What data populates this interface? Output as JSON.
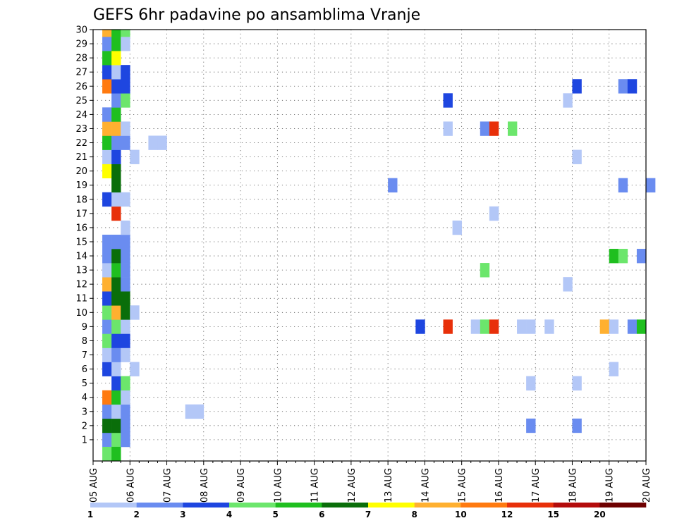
{
  "chart_data": {
    "type": "heatmap",
    "title": "GEFS 6hr padavine po ansamblima Vranje",
    "xlabel": "",
    "ylabel": "",
    "grid": true,
    "x_ticks": [
      "05 AUG",
      "06 AUG",
      "07 AUG",
      "08 AUG",
      "09 AUG",
      "10 AUG",
      "11 AUG",
      "12 AUG",
      "13 AUG",
      "14 AUG",
      "15 AUG",
      "16 AUG",
      "17 AUG",
      "18 AUG",
      "19 AUG",
      "20 AUG"
    ],
    "y_ticks": [
      "1",
      "2",
      "3",
      "4",
      "5",
      "6",
      "7",
      "8",
      "9",
      "10",
      "11",
      "12",
      "13",
      "14",
      "15",
      "16",
      "17",
      "18",
      "19",
      "20",
      "21",
      "22",
      "23",
      "24",
      "25",
      "26",
      "27",
      "28",
      "29",
      "30"
    ],
    "x_unit": "6-hour steps from 05 AUG 00Z",
    "ylim": [
      0.5,
      30.5
    ],
    "legend": {
      "placement": "bottom",
      "levels": [
        "1",
        "2",
        "3",
        "4",
        "5",
        "6",
        "7",
        "8",
        "10",
        "12",
        "15",
        "20"
      ],
      "colors": [
        "#b3c7f7",
        "#6a8cf0",
        "#1e46e0",
        "#6ce66c",
        "#1fbf1f",
        "#0a6e0a",
        "#ffff00",
        "#ffb030",
        "#ff7a10",
        "#e8300a",
        "#b40c0c",
        "#6e0000"
      ]
    },
    "colors": {
      "c1": "#b3c7f7",
      "c2": "#6a8cf0",
      "c3": "#1e46e0",
      "c4": "#6ce66c",
      "c5": "#1fbf1f",
      "c6": "#0a6e0a",
      "c7": "#ffff00",
      "c8": "#ffb030",
      "c10": "#ff7a10",
      "c12": "#e8300a"
    },
    "cells": [
      {
        "m": 1,
        "t": 1,
        "v": 2
      },
      {
        "m": 1,
        "t": 2,
        "v": 4
      },
      {
        "m": 1,
        "t": 3,
        "v": 2
      },
      {
        "m": 2,
        "t": 1,
        "v": 6
      },
      {
        "m": 2,
        "t": 2,
        "v": 6
      },
      {
        "m": 2,
        "t": 3,
        "v": 2
      },
      {
        "m": 3,
        "t": 1,
        "v": 2
      },
      {
        "m": 3,
        "t": 2,
        "v": 1
      },
      {
        "m": 3,
        "t": 3,
        "v": 2
      },
      {
        "m": 3,
        "t": 10,
        "v": 1
      },
      {
        "m": 3,
        "t": 11,
        "v": 1
      },
      {
        "m": 4,
        "t": 1,
        "v": 10
      },
      {
        "m": 4,
        "t": 2,
        "v": 5
      },
      {
        "m": 4,
        "t": 3,
        "v": 1
      },
      {
        "m": 5,
        "t": 2,
        "v": 3
      },
      {
        "m": 5,
        "t": 3,
        "v": 4
      },
      {
        "m": 6,
        "t": 1,
        "v": 3
      },
      {
        "m": 6,
        "t": 2,
        "v": 1
      },
      {
        "m": 6,
        "t": 4,
        "v": 1
      },
      {
        "m": 7,
        "t": 1,
        "v": 1
      },
      {
        "m": 7,
        "t": 2,
        "v": 2
      },
      {
        "m": 7,
        "t": 3,
        "v": 1
      },
      {
        "m": 8,
        "t": 1,
        "v": 4
      },
      {
        "m": 8,
        "t": 2,
        "v": 3
      },
      {
        "m": 8,
        "t": 3,
        "v": 3
      },
      {
        "m": 9,
        "t": 1,
        "v": 2
      },
      {
        "m": 9,
        "t": 2,
        "v": 4
      },
      {
        "m": 9,
        "t": 3,
        "v": 1
      },
      {
        "m": 10,
        "t": 1,
        "v": 4
      },
      {
        "m": 10,
        "t": 2,
        "v": 8
      },
      {
        "m": 10,
        "t": 3,
        "v": 6
      },
      {
        "m": 10,
        "t": 4,
        "v": 1
      },
      {
        "m": 11,
        "t": 1,
        "v": 3
      },
      {
        "m": 11,
        "t": 2,
        "v": 6
      },
      {
        "m": 11,
        "t": 3,
        "v": 6
      },
      {
        "m": 12,
        "t": 1,
        "v": 8
      },
      {
        "m": 12,
        "t": 2,
        "v": 6
      },
      {
        "m": 12,
        "t": 3,
        "v": 2
      },
      {
        "m": 13,
        "t": 1,
        "v": 1
      },
      {
        "m": 13,
        "t": 2,
        "v": 5
      },
      {
        "m": 13,
        "t": 3,
        "v": 2
      },
      {
        "m": 14,
        "t": 1,
        "v": 2
      },
      {
        "m": 14,
        "t": 2,
        "v": 6
      },
      {
        "m": 14,
        "t": 3,
        "v": 2
      },
      {
        "m": 15,
        "t": 1,
        "v": 2
      },
      {
        "m": 15,
        "t": 2,
        "v": 2
      },
      {
        "m": 15,
        "t": 3,
        "v": 2
      },
      {
        "m": 16,
        "t": 3,
        "v": 1
      },
      {
        "m": 17,
        "t": 2,
        "v": 12
      },
      {
        "m": 18,
        "t": 1,
        "v": 3
      },
      {
        "m": 18,
        "t": 2,
        "v": 1
      },
      {
        "m": 18,
        "t": 3,
        "v": 1
      },
      {
        "m": 19,
        "t": 2,
        "v": 6
      },
      {
        "m": 20,
        "t": 1,
        "v": 7
      },
      {
        "m": 20,
        "t": 2,
        "v": 6
      },
      {
        "m": 21,
        "t": 1,
        "v": 1
      },
      {
        "m": 21,
        "t": 2,
        "v": 3
      },
      {
        "m": 21,
        "t": 4,
        "v": 1
      },
      {
        "m": 22,
        "t": 1,
        "v": 5
      },
      {
        "m": 22,
        "t": 2,
        "v": 2
      },
      {
        "m": 22,
        "t": 3,
        "v": 2
      },
      {
        "m": 22,
        "t": 6,
        "v": 1
      },
      {
        "m": 22,
        "t": 7,
        "v": 1
      },
      {
        "m": 23,
        "t": 1,
        "v": 8
      },
      {
        "m": 23,
        "t": 2,
        "v": 8
      },
      {
        "m": 23,
        "t": 3,
        "v": 1
      },
      {
        "m": 24,
        "t": 1,
        "v": 2
      },
      {
        "m": 24,
        "t": 2,
        "v": 5
      },
      {
        "m": 25,
        "t": 2,
        "v": 2
      },
      {
        "m": 25,
        "t": 3,
        "v": 4
      },
      {
        "m": 26,
        "t": 1,
        "v": 10
      },
      {
        "m": 26,
        "t": 2,
        "v": 3
      },
      {
        "m": 26,
        "t": 3,
        "v": 3
      },
      {
        "m": 27,
        "t": 1,
        "v": 3
      },
      {
        "m": 27,
        "t": 2,
        "v": 1
      },
      {
        "m": 27,
        "t": 3,
        "v": 3
      },
      {
        "m": 28,
        "t": 1,
        "v": 5
      },
      {
        "m": 28,
        "t": 2,
        "v": 7
      },
      {
        "m": 29,
        "t": 1,
        "v": 2
      },
      {
        "m": 29,
        "t": 2,
        "v": 5
      },
      {
        "m": 29,
        "t": 3,
        "v": 1
      },
      {
        "m": 30,
        "t": 1,
        "v": 8
      },
      {
        "m": 30,
        "t": 2,
        "v": 5
      },
      {
        "m": 30,
        "t": 3,
        "v": 4
      },
      {
        "m": 0,
        "t": 1,
        "v": 4
      },
      {
        "m": 0,
        "t": 2,
        "v": 5
      },
      {
        "m": 26,
        "t": 52,
        "v": 3
      },
      {
        "m": 26,
        "t": 57,
        "v": 2
      },
      {
        "m": 26,
        "t": 58,
        "v": 3
      },
      {
        "m": 25,
        "t": 38,
        "v": 3
      },
      {
        "m": 25,
        "t": 51,
        "v": 1
      },
      {
        "m": 23,
        "t": 38,
        "v": 1
      },
      {
        "m": 23,
        "t": 42,
        "v": 2
      },
      {
        "m": 23,
        "t": 43,
        "v": 12
      },
      {
        "m": 23,
        "t": 45,
        "v": 4
      },
      {
        "m": 21,
        "t": 52,
        "v": 1
      },
      {
        "m": 19,
        "t": 32,
        "v": 2
      },
      {
        "m": 19,
        "t": 57,
        "v": 2
      },
      {
        "m": 19,
        "t": 60,
        "v": 2
      },
      {
        "m": 17,
        "t": 43,
        "v": 1
      },
      {
        "m": 16,
        "t": 39,
        "v": 1
      },
      {
        "m": 14,
        "t": 56,
        "v": 5
      },
      {
        "m": 14,
        "t": 57,
        "v": 4
      },
      {
        "m": 14,
        "t": 59,
        "v": 2
      },
      {
        "m": 13,
        "t": 42,
        "v": 4
      },
      {
        "m": 12,
        "t": 51,
        "v": 1
      },
      {
        "m": 9,
        "t": 35,
        "v": 3
      },
      {
        "m": 9,
        "t": 38,
        "v": 12
      },
      {
        "m": 9,
        "t": 41,
        "v": 1
      },
      {
        "m": 9,
        "t": 42,
        "v": 4
      },
      {
        "m": 9,
        "t": 43,
        "v": 12
      },
      {
        "m": 9,
        "t": 46,
        "v": 1
      },
      {
        "m": 9,
        "t": 47,
        "v": 1
      },
      {
        "m": 9,
        "t": 49,
        "v": 1
      },
      {
        "m": 9,
        "t": 55,
        "v": 8
      },
      {
        "m": 9,
        "t": 56,
        "v": 1
      },
      {
        "m": 9,
        "t": 58,
        "v": 2
      },
      {
        "m": 9,
        "t": 59,
        "v": 5
      },
      {
        "m": 6,
        "t": 56,
        "v": 1
      },
      {
        "m": 5,
        "t": 47,
        "v": 1
      },
      {
        "m": 5,
        "t": 52,
        "v": 1
      },
      {
        "m": 2,
        "t": 47,
        "v": 2
      },
      {
        "m": 2,
        "t": 52,
        "v": 2
      }
    ]
  }
}
